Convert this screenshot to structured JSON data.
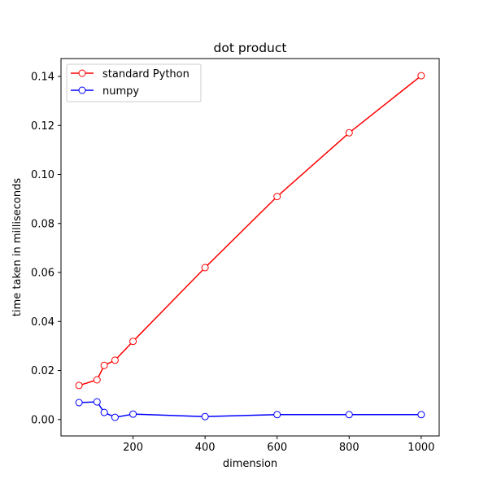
{
  "chart_data": {
    "type": "line",
    "title": "dot product",
    "xlabel": "dimension",
    "ylabel": "time taken in milliseconds",
    "xlim": [
      0,
      1050
    ],
    "ylim": [
      -0.0067,
      0.1473
    ],
    "x_ticks": [
      200,
      400,
      600,
      800,
      1000
    ],
    "y_ticks": [
      0.0,
      0.02,
      0.04,
      0.06,
      0.08,
      0.1,
      0.12,
      0.14
    ],
    "y_tick_labels": [
      "0.00",
      "0.02",
      "0.04",
      "0.06",
      "0.08",
      "0.10",
      "0.12",
      "0.14"
    ],
    "grid": false,
    "legend_position": "top-left",
    "series": [
      {
        "name": "standard Python",
        "color": "#ff0000",
        "x": [
          50,
          100,
          120,
          150,
          200,
          400,
          600,
          800,
          1000
        ],
        "y": [
          0.0139,
          0.0162,
          0.0221,
          0.0242,
          0.0319,
          0.062,
          0.091,
          0.117,
          0.1403
        ]
      },
      {
        "name": "numpy",
        "color": "#0000ff",
        "x": [
          50,
          100,
          120,
          150,
          200,
          400,
          600,
          800,
          1000
        ],
        "y": [
          0.0069,
          0.0072,
          0.0029,
          0.0009,
          0.0022,
          0.0012,
          0.002,
          0.002,
          0.002
        ]
      }
    ]
  }
}
